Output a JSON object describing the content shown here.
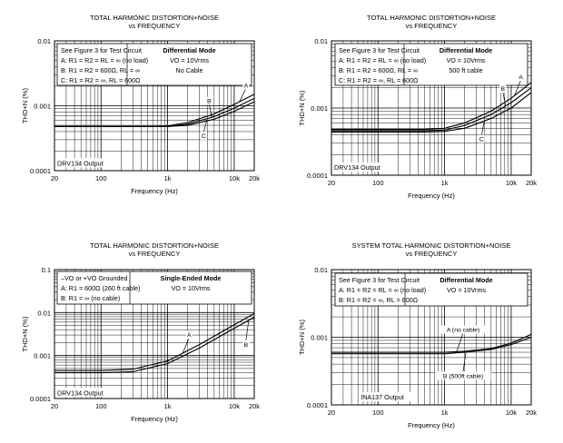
{
  "chart_data": [
    {
      "type": "line",
      "title": "TOTAL HARMONIC DISTORTION+NOISE",
      "subtitle": "vs FREQUENCY",
      "xlabel": "Frequency (Hz)",
      "ylabel": "THD+N (%)",
      "xscale": "log",
      "yscale": "log",
      "xlim": [
        20,
        20000
      ],
      "ylim": [
        0.0001,
        0.01
      ],
      "x_ticks": [
        "20",
        "100",
        "1k",
        "10k",
        "20k"
      ],
      "y_ticks": [
        "0.01",
        "0.001",
        "0.0001"
      ],
      "legend_lines": [
        "See Figure 3 for Test Circuit",
        "A: R1 = R2 = RL = ∞ (no load)",
        "B: R1 = R2 = 600Ω, RL = ∞",
        "C: R1 = R2 = ∞, RL = 600Ω"
      ],
      "mode_lines": [
        "Differential Mode",
        "VO = 10Vrms",
        "No Cable"
      ],
      "inner_label": "DRV134 Output",
      "series": [
        {
          "name": "A",
          "x": [
            20,
            100,
            500,
            1000,
            2000,
            5000,
            10000,
            20000
          ],
          "y": [
            0.00048,
            0.00048,
            0.00048,
            0.00049,
            0.00055,
            0.00075,
            0.00105,
            0.0015
          ]
        },
        {
          "name": "B",
          "x": [
            20,
            100,
            500,
            1000,
            2000,
            5000,
            10000,
            20000
          ],
          "y": [
            0.00048,
            0.00048,
            0.00048,
            0.00048,
            0.00052,
            0.00068,
            0.00092,
            0.0013
          ]
        },
        {
          "name": "C",
          "x": [
            20,
            100,
            500,
            1000,
            2000,
            5000,
            10000,
            20000
          ],
          "y": [
            0.00048,
            0.00048,
            0.00048,
            0.00048,
            0.0005,
            0.00062,
            0.00082,
            0.00115
          ]
        }
      ],
      "curve_labels": [
        {
          "text": "A",
          "x": 15000,
          "y": 0.0019
        },
        {
          "text": "B",
          "x": 4200,
          "y": 0.0011
        },
        {
          "text": "C",
          "x": 3500,
          "y": 0.00032
        }
      ]
    },
    {
      "type": "line",
      "title": "TOTAL HARMONIC DISTORTION+NOISE",
      "subtitle": "vs FREQUENCY",
      "xlabel": "Frequency (Hz)",
      "ylabel": "THD+N (%)",
      "xscale": "log",
      "yscale": "log",
      "xlim": [
        20,
        20000
      ],
      "ylim": [
        0.0001,
        0.01
      ],
      "x_ticks": [
        "20",
        "100",
        "1k",
        "10k",
        "20k"
      ],
      "y_ticks": [
        "0.01",
        "0.001",
        "0.0001"
      ],
      "legend_lines": [
        "See Figure 3 for Test Circuit",
        "A: R1 = R2 = RL = ∞ (no load)",
        "B: R1 = R2 = 600Ω, RL = ∞",
        "C: R1 = R2 = ∞, RL = 600Ω"
      ],
      "mode_lines": [
        "Differential Mode",
        "VO = 10Vrms",
        "500 ft cable"
      ],
      "inner_label": "DRV134 Output",
      "series": [
        {
          "name": "A",
          "x": [
            20,
            100,
            500,
            1000,
            2000,
            5000,
            10000,
            20000
          ],
          "y": [
            0.00048,
            0.00048,
            0.00048,
            0.0005,
            0.0006,
            0.0009,
            0.0014,
            0.0024
          ]
        },
        {
          "name": "B",
          "x": [
            20,
            100,
            500,
            1000,
            2000,
            5000,
            10000,
            20000
          ],
          "y": [
            0.00046,
            0.00046,
            0.00046,
            0.00047,
            0.00055,
            0.0008,
            0.0012,
            0.002
          ]
        },
        {
          "name": "C",
          "x": [
            20,
            100,
            500,
            1000,
            2000,
            5000,
            10000,
            20000
          ],
          "y": [
            0.00044,
            0.00044,
            0.00044,
            0.00045,
            0.0005,
            0.0007,
            0.001,
            0.0017
          ]
        }
      ],
      "curve_labels": [
        {
          "text": "A",
          "x": 14000,
          "y": 0.0027
        },
        {
          "text": "B",
          "x": 7500,
          "y": 0.0018
        },
        {
          "text": "C",
          "x": 3600,
          "y": 0.00032
        }
      ]
    },
    {
      "type": "line",
      "title": "TOTAL HARMONIC DISTORTION+NOISE",
      "subtitle": "vs FREQUENCY",
      "xlabel": "Frequency (Hz)",
      "ylabel": "THD+N (%)",
      "xscale": "log",
      "yscale": "log",
      "xlim": [
        20,
        20000
      ],
      "ylim": [
        0.0001,
        0.1
      ],
      "x_ticks": [
        "20",
        "100",
        "1k",
        "10k",
        "20k"
      ],
      "y_ticks": [
        "0.1",
        "0.01",
        "0.001",
        "0.0001"
      ],
      "legend_lines": [
        "–VO or +VO Grounded",
        "A: R1 = 600Ω (260 ft cable)",
        "B: R1 = ∞ (no cable)"
      ],
      "mode_lines": [
        "Single-Ended Mode",
        "VO = 10Vrms"
      ],
      "inner_label": "DRV134 Output",
      "series": [
        {
          "name": "A",
          "x": [
            20,
            100,
            300,
            1000,
            3000,
            10000,
            20000
          ],
          "y": [
            0.00045,
            0.00045,
            0.00048,
            0.00075,
            0.0018,
            0.0052,
            0.0095
          ]
        },
        {
          "name": "B",
          "x": [
            20,
            100,
            300,
            1000,
            3000,
            10000,
            20000
          ],
          "y": [
            0.0004,
            0.0004,
            0.00042,
            0.00065,
            0.0015,
            0.0043,
            0.0078
          ]
        }
      ],
      "curve_labels": [
        {
          "text": "A",
          "x": 2100,
          "y": 0.0027
        },
        {
          "text": "B",
          "x": 15000,
          "y": 0.0016
        }
      ]
    },
    {
      "type": "line",
      "title": "SYSTEM TOTAL HARMONIC DISTORTION+NOISE",
      "subtitle": "vs FREQUENCY",
      "xlabel": "Frequency (Hz)",
      "ylabel": "THD+N (%)",
      "xscale": "log",
      "yscale": "log",
      "xlim": [
        20,
        20000
      ],
      "ylim": [
        0.0001,
        0.01
      ],
      "x_ticks": [
        "20",
        "100",
        "1k",
        "10k",
        "20k"
      ],
      "y_ticks": [
        "0.01",
        "0.001",
        "0.0001"
      ],
      "legend_lines": [
        "See Figure 3 for Test Circuit",
        "A: R1 = R2 = RL = ∞ (no load)",
        "B: R1 = R2 = ∞, RL = 600Ω"
      ],
      "mode_lines": [
        "Differential Mode",
        "VO = 10Vrms"
      ],
      "inner_label": "INA137 Output",
      "series": [
        {
          "name": "A (no cable)",
          "x": [
            20,
            100,
            500,
            1000,
            2000,
            5000,
            10000,
            20000
          ],
          "y": [
            0.0006,
            0.0006,
            0.0006,
            0.0006,
            0.00062,
            0.00068,
            0.00082,
            0.0011
          ]
        },
        {
          "name": "B (500ft cable)",
          "x": [
            20,
            100,
            500,
            1000,
            2000,
            5000,
            10000,
            20000
          ],
          "y": [
            0.00057,
            0.00057,
            0.00057,
            0.00057,
            0.0006,
            0.00066,
            0.00078,
            0.001
          ]
        }
      ],
      "curve_labels": [
        {
          "text": "A (no cable)",
          "x": 1900,
          "y": 0.0012
        },
        {
          "text": "B (500ft cable)",
          "x": 1900,
          "y": 0.00025
        }
      ]
    }
  ]
}
